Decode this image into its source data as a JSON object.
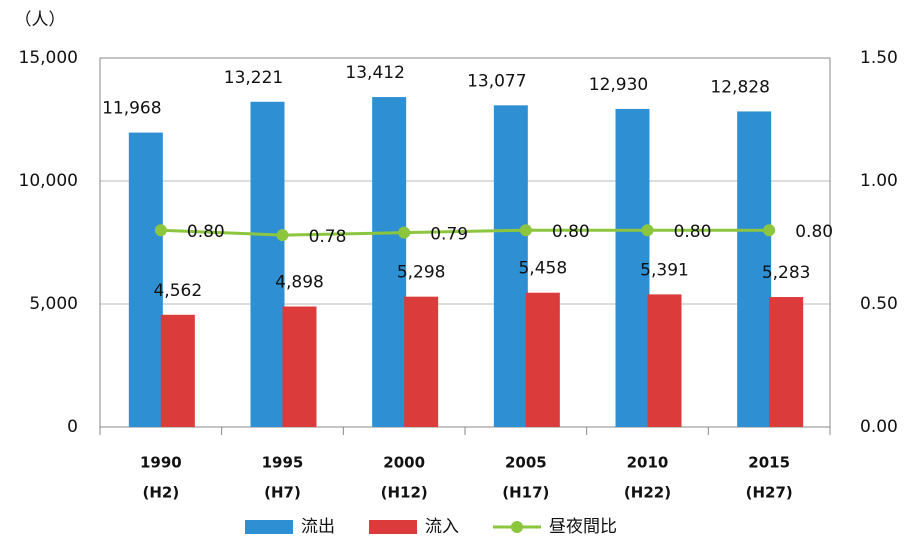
{
  "chart_data": {
    "type": "bar",
    "y_unit": "（人）",
    "categories": [
      [
        "1990",
        "(H2)"
      ],
      [
        "1995",
        "(H7)"
      ],
      [
        "2000",
        "(H12)"
      ],
      [
        "2005",
        "(H17)"
      ],
      [
        "2010",
        "(H22)"
      ],
      [
        "2015",
        "(H27)"
      ]
    ],
    "series": [
      {
        "name": "流出",
        "color": "#2f8fd3",
        "values": [
          11968,
          13221,
          13412,
          13077,
          12930,
          12828
        ],
        "value_labels": [
          "11,968",
          "13,221",
          "13,412",
          "13,077",
          "12,930",
          "12,828"
        ]
      },
      {
        "name": "流入",
        "color": "#dc3b3b",
        "values": [
          4562,
          4898,
          5298,
          5458,
          5391,
          5283
        ],
        "value_labels": [
          "4,562",
          "4,898",
          "5,298",
          "5,458",
          "5,391",
          "5,283"
        ]
      },
      {
        "name": "昼夜間比",
        "type": "line",
        "axis": "y2",
        "color": "#8cc63f",
        "values": [
          0.8,
          0.78,
          0.79,
          0.8,
          0.8,
          0.8
        ],
        "value_labels": [
          "0.80",
          "0.78",
          "0.79",
          "0.80",
          "0.80",
          "0.80"
        ]
      }
    ],
    "ylim": [
      0,
      15000
    ],
    "yticks": [
      0,
      {
        "value": 5000,
        "label": "5,000"
      },
      {
        "value": 10000,
        "label": "10,000"
      },
      {
        "value": 15000,
        "label": "15,000"
      }
    ],
    "y2lim": [
      0,
      1.5
    ],
    "y2ticks": [
      {
        "value": 0,
        "label": "0.00"
      },
      {
        "value": 0.5,
        "label": "0.50"
      },
      {
        "value": 1,
        "label": "1.00"
      },
      {
        "value": 1.5,
        "label": "1.50"
      }
    ],
    "grid": true,
    "legend": "bottom"
  }
}
